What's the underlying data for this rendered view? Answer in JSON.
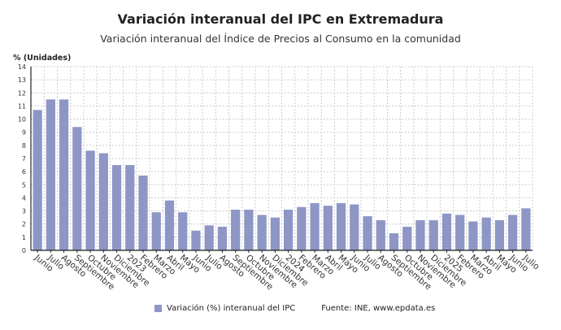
{
  "chart_data": {
    "type": "bar",
    "title": "Variación interanual del IPC en Extremadura",
    "subtitle": "Variación interanual del Índice de Precios al Consumo en la comunidad",
    "ylabel": "% (Unidades)",
    "xlabel": "",
    "ylim": [
      0,
      14
    ],
    "yticks": [
      0,
      1,
      2,
      3,
      4,
      5,
      6,
      7,
      8,
      9,
      10,
      11,
      12,
      13,
      14
    ],
    "grid": true,
    "legend_position": "bottom",
    "color": "#8e96c6",
    "categories": [
      "Junio",
      "Julio",
      "Agosto",
      "Septiembre",
      "Octubre",
      "Noviembre",
      "Diciembre",
      "2023",
      "Febrero",
      "Marzo",
      "Abril",
      "Mayo",
      "Junio",
      "Julio",
      "Agosto",
      "Septiembre",
      "Octubre",
      "Noviembre",
      "Diciembre",
      "2024",
      "Febrero",
      "Marzo",
      "Abril",
      "Mayo",
      "Junio",
      "Julio",
      "Agosto",
      "Septiembre",
      "Octubre",
      "Noviembre",
      "Diciembre",
      "2025",
      "Febrero",
      "Marzo",
      "Abril",
      "Mayo",
      "Junio",
      "Julio"
    ],
    "series": [
      {
        "name": "Variación (%) interanual del IPC",
        "values": [
          10.7,
          11.5,
          11.5,
          9.4,
          7.6,
          7.4,
          6.5,
          6.5,
          5.7,
          2.9,
          3.8,
          2.9,
          1.5,
          1.9,
          1.8,
          3.1,
          3.1,
          2.7,
          2.5,
          3.1,
          3.3,
          3.6,
          3.4,
          3.6,
          3.5,
          2.6,
          2.3,
          1.3,
          1.8,
          2.3,
          2.3,
          2.8,
          2.7,
          2.2,
          2.5,
          2.3,
          2.7,
          3.2
        ]
      }
    ],
    "source": "Fuente: INE, www.epdata.es"
  }
}
